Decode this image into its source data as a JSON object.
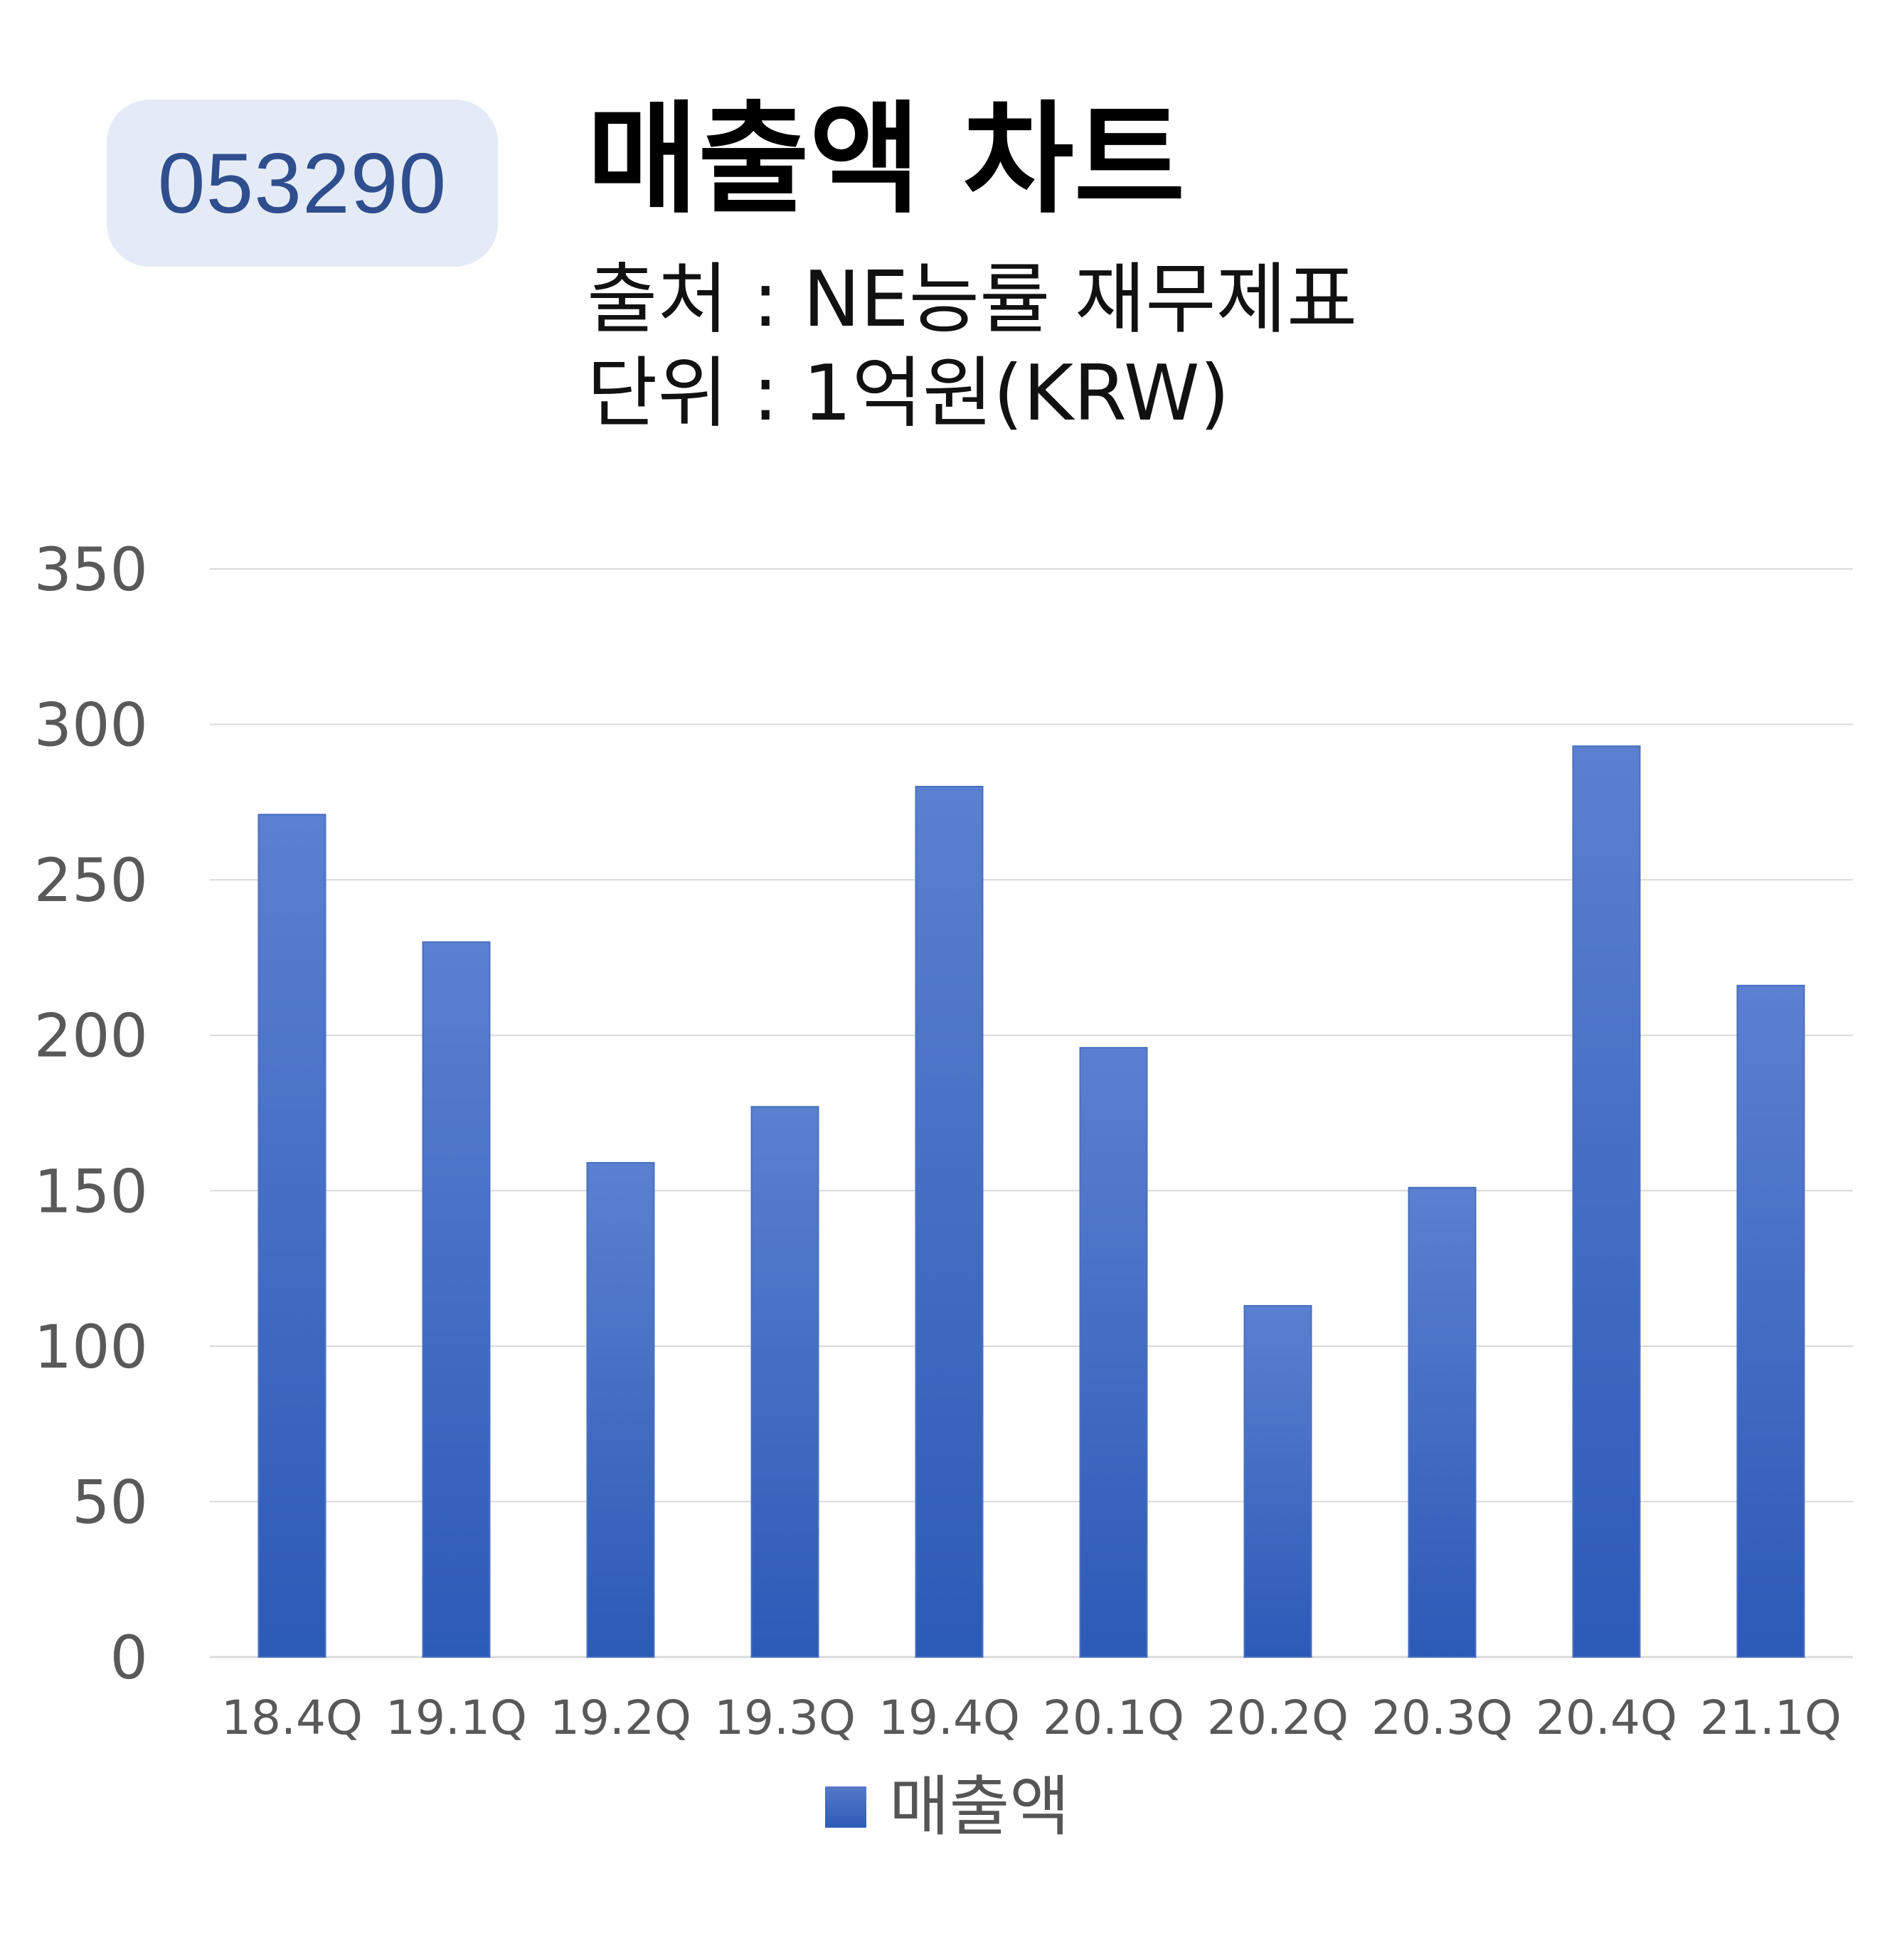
{
  "header": {
    "ticker": "053290",
    "title": "매출액 차트",
    "source": "출처 : NE능률 재무제표",
    "unit": "단위 : 1억원(KRW)"
  },
  "colors": {
    "bar_top": "#5b80cf",
    "bar_bottom": "#2c5ab7",
    "badge_bg": "#e5ebf6",
    "badge_text": "#2f4e8e",
    "grid": "#d9d9d9",
    "axis_text": "#595959"
  },
  "chart_data": {
    "type": "bar",
    "categories": [
      "18.4Q",
      "19.1Q",
      "19.2Q",
      "19.3Q",
      "19.4Q",
      "20.1Q",
      "20.2Q",
      "20.3Q",
      "20.4Q",
      "21.1Q"
    ],
    "series": [
      {
        "name": "매출액",
        "values": [
          271,
          230,
          159,
          177,
          280,
          196,
          113,
          151,
          293,
          216
        ]
      }
    ],
    "ylim": [
      0,
      350
    ],
    "yticks": [
      0,
      50,
      100,
      150,
      200,
      250,
      300,
      350
    ],
    "grid": true,
    "legend_position": "bottom"
  }
}
